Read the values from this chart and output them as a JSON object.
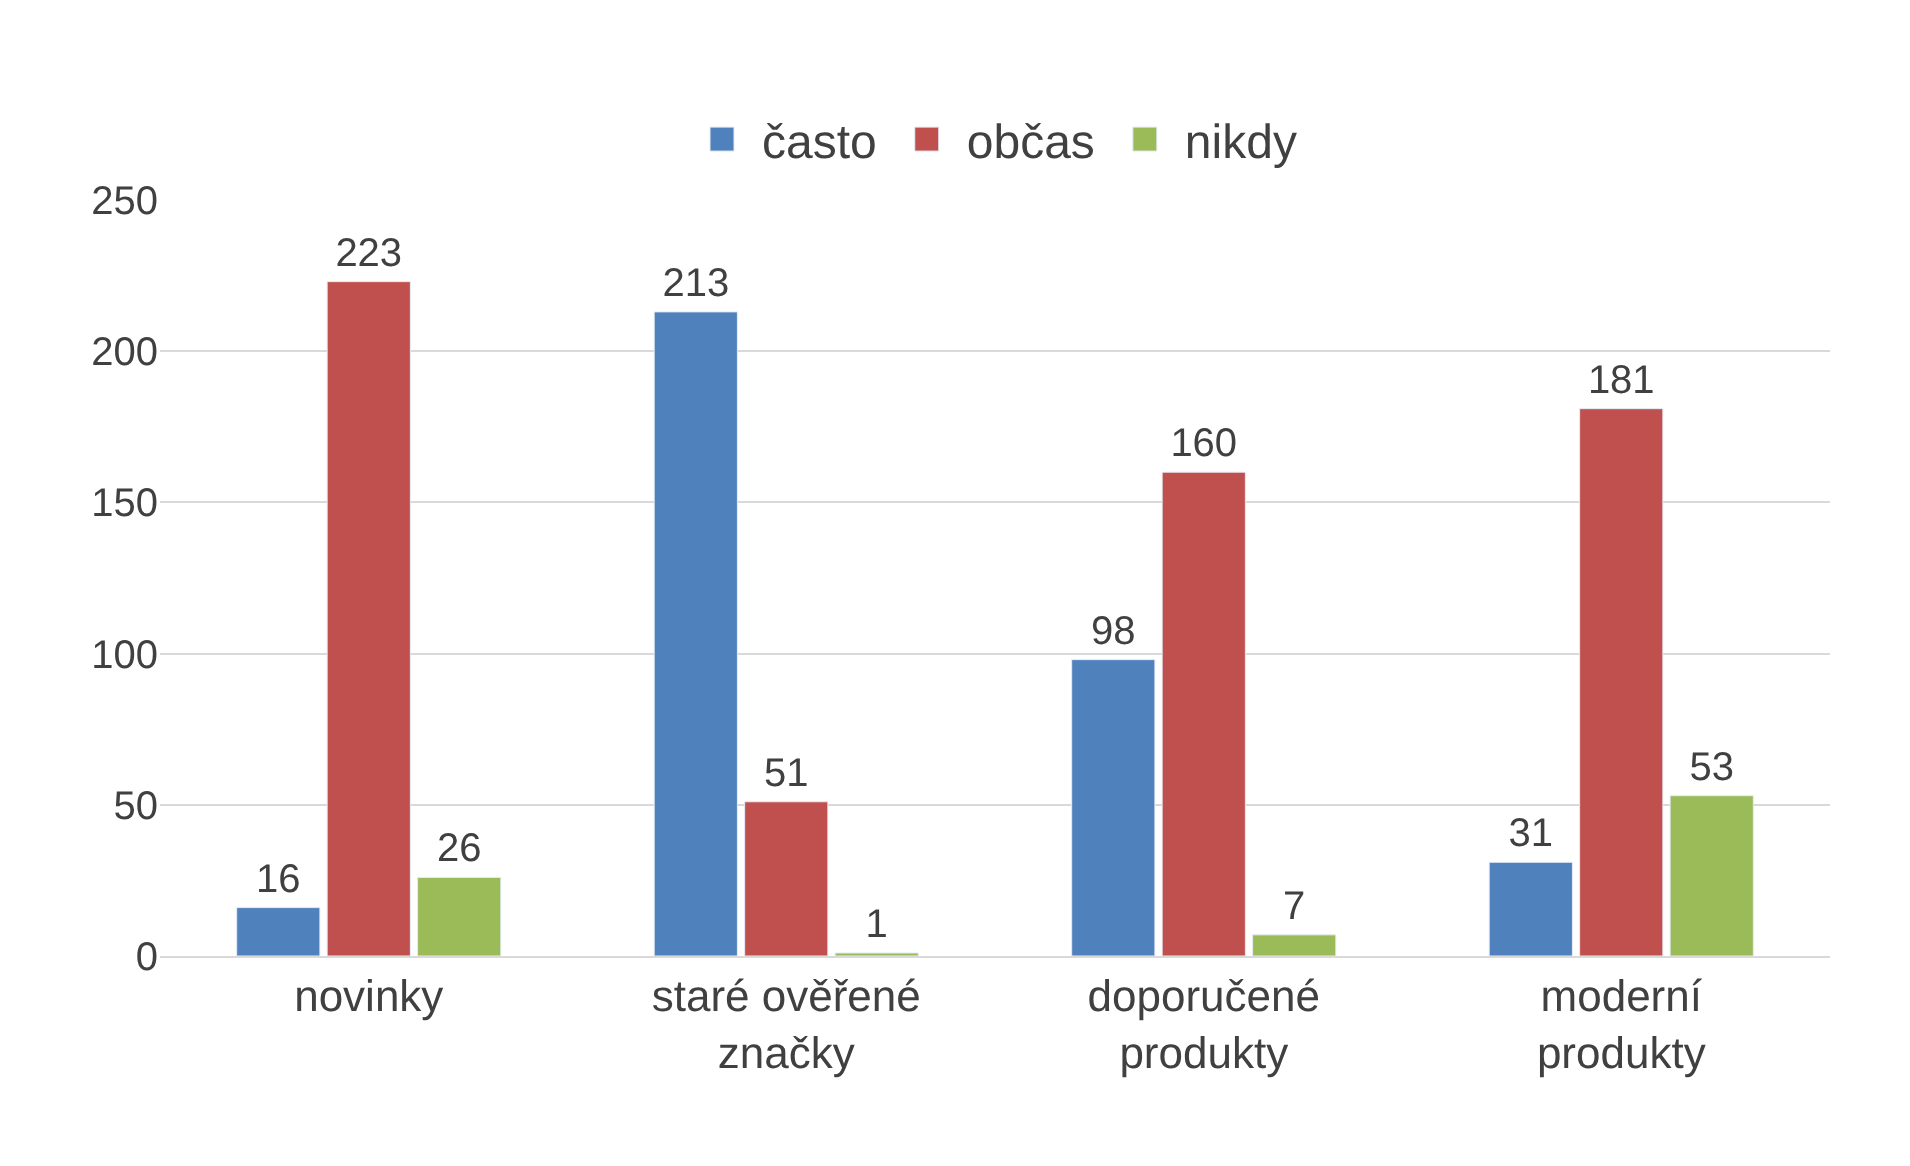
{
  "chart_data": {
    "type": "bar",
    "categories": [
      "novinky",
      "staré ověřené\nznačky",
      "doporučené\nprodukty",
      "moderní\nprodukty"
    ],
    "series": [
      {
        "name": "často",
        "color": "#4f81bd",
        "values": [
          16,
          213,
          98,
          31
        ]
      },
      {
        "name": "občas",
        "color": "#c0504d",
        "values": [
          223,
          51,
          160,
          181
        ]
      },
      {
        "name": "nikdy",
        "color": "#9bbb59",
        "values": [
          26,
          1,
          7,
          53
        ]
      }
    ],
    "ylim": [
      0,
      250
    ],
    "yticks": [
      0,
      50,
      100,
      150,
      200,
      250
    ],
    "grid": "y",
    "legend": "top",
    "data_labels": true
  }
}
